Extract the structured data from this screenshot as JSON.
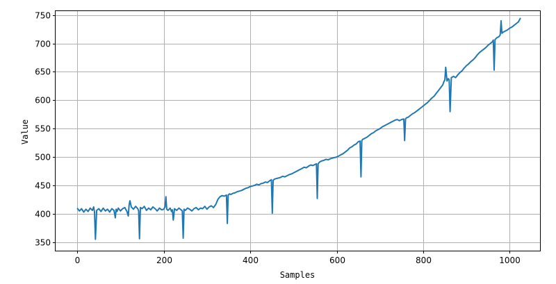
{
  "chart_data": {
    "type": "line",
    "title": "",
    "xlabel": "Samples",
    "ylabel": "Value",
    "xlim": [
      -50,
      1070
    ],
    "ylim": [
      335,
      757
    ],
    "xticks": [
      0,
      200,
      400,
      600,
      800,
      1000
    ],
    "yticks": [
      350,
      400,
      450,
      500,
      550,
      600,
      650,
      700,
      750
    ],
    "grid": true,
    "legend": "none",
    "series": [
      {
        "color": "#1f77b4",
        "x": [
          0,
          5,
          10,
          15,
          20,
          25,
          30,
          35,
          38,
          40,
          42,
          45,
          50,
          55,
          60,
          65,
          70,
          75,
          80,
          85,
          88,
          90,
          92,
          95,
          100,
          105,
          110,
          115,
          118,
          120,
          122,
          125,
          130,
          135,
          140,
          142,
          144,
          146,
          150,
          155,
          160,
          165,
          170,
          175,
          180,
          185,
          190,
          195,
          200,
          203,
          205,
          207,
          210,
          215,
          218,
          220,
          222,
          225,
          230,
          235,
          240,
          243,
          245,
          247,
          250,
          255,
          260,
          265,
          270,
          275,
          280,
          285,
          290,
          295,
          300,
          305,
          310,
          315,
          320,
          325,
          330,
          335,
          340,
          345,
          347,
          349,
          352,
          355,
          360,
          365,
          370,
          375,
          380,
          385,
          390,
          395,
          400,
          405,
          410,
          415,
          420,
          425,
          430,
          435,
          440,
          445,
          449,
          451,
          453,
          456,
          460,
          465,
          470,
          475,
          480,
          485,
          490,
          495,
          500,
          505,
          510,
          515,
          520,
          525,
          530,
          535,
          540,
          545,
          550,
          553,
          555,
          557,
          560,
          565,
          570,
          575,
          580,
          585,
          590,
          595,
          600,
          605,
          610,
          615,
          620,
          625,
          630,
          635,
          640,
          645,
          650,
          654,
          656,
          658,
          660,
          665,
          670,
          675,
          680,
          685,
          690,
          695,
          700,
          705,
          710,
          715,
          720,
          725,
          730,
          735,
          740,
          745,
          750,
          755,
          757,
          759,
          761,
          765,
          770,
          775,
          780,
          785,
          790,
          795,
          800,
          805,
          810,
          815,
          820,
          825,
          830,
          835,
          840,
          845,
          848,
          850,
          852,
          855,
          858,
          860,
          862,
          865,
          870,
          875,
          880,
          885,
          890,
          895,
          900,
          905,
          910,
          915,
          920,
          925,
          930,
          935,
          940,
          945,
          950,
          955,
          960,
          962,
          964,
          966,
          970,
          975,
          978,
          980,
          982,
          985,
          990,
          995,
          1000,
          1005,
          1010,
          1015,
          1020,
          1025
        ],
        "y": [
          410,
          405,
          409,
          403,
          408,
          404,
          410,
          406,
          412,
          403,
          355,
          406,
          409,
          404,
          410,
          405,
          408,
          403,
          409,
          406,
          393,
          408,
          404,
          410,
          405,
          409,
          411,
          404,
          396,
          416,
          423,
          412,
          408,
          413,
          409,
          405,
          356,
          411,
          409,
          413,
          406,
          410,
          407,
          412,
          409,
          405,
          410,
          407,
          408,
          412,
          430,
          408,
          406,
          410,
          404,
          407,
          389,
          409,
          406,
          410,
          407,
          405,
          357,
          408,
          406,
          410,
          408,
          405,
          409,
          411,
          407,
          410,
          409,
          413,
          408,
          412,
          414,
          411,
          416,
          425,
          430,
          432,
          431,
          433,
          383,
          433,
          435,
          434,
          436,
          437,
          439,
          440,
          441,
          443,
          445,
          446,
          448,
          449,
          450,
          452,
          451,
          453,
          454,
          456,
          455,
          458,
          460,
          401,
          459,
          461,
          462,
          463,
          464,
          466,
          465,
          467,
          469,
          470,
          472,
          474,
          476,
          478,
          480,
          482,
          481,
          484,
          486,
          485,
          487,
          488,
          427,
          488,
          491,
          493,
          494,
          496,
          495,
          497,
          498,
          499,
          500,
          502,
          504,
          506,
          509,
          512,
          516,
          518,
          521,
          523,
          527,
          528,
          465,
          529,
          531,
          533,
          535,
          538,
          541,
          543,
          546,
          548,
          550,
          553,
          555,
          557,
          559,
          561,
          563,
          565,
          566,
          564,
          566,
          567,
          529,
          567,
          569,
          570,
          573,
          576,
          578,
          581,
          584,
          587,
          590,
          593,
          596,
          600,
          604,
          607,
          612,
          617,
          622,
          627,
          633,
          636,
          658,
          634,
          638,
          636,
          580,
          640,
          642,
          640,
          645,
          649,
          652,
          657,
          661,
          664,
          668,
          671,
          675,
          680,
          684,
          687,
          690,
          693,
          697,
          700,
          703,
          706,
          653,
          707,
          710,
          712,
          715,
          740,
          718,
          720,
          722,
          724,
          727,
          729,
          732,
          735,
          738,
          745
        ]
      }
    ]
  }
}
